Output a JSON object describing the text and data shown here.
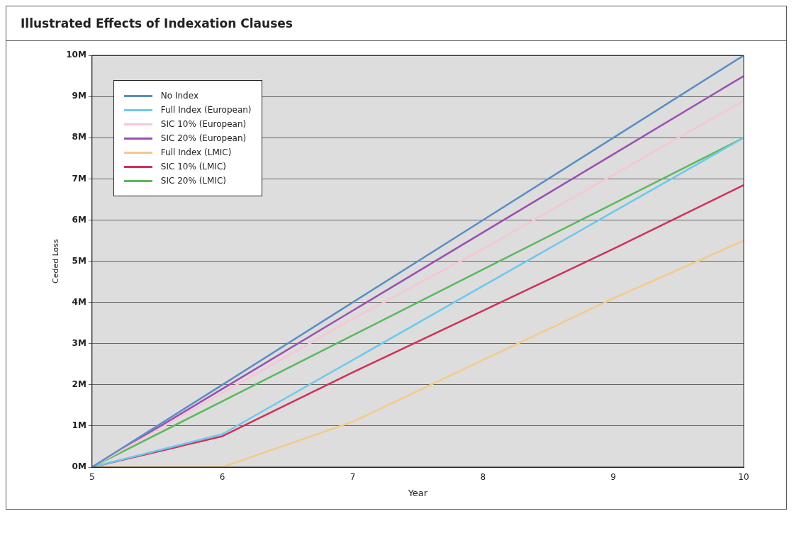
{
  "chart_data": {
    "type": "line",
    "title": "Illustrated Effects of Indexation Clauses",
    "xlabel": "Year",
    "ylabel": "Ceded Loss",
    "x": [
      5,
      6,
      7,
      8,
      9,
      10
    ],
    "series": [
      {
        "name": "No Index",
        "color": "#5b8ec4",
        "values": [
          0,
          2,
          4,
          6,
          8,
          10
        ]
      },
      {
        "name": "Full Index (European)",
        "color": "#6fc8ec",
        "values": [
          0,
          0.8,
          2.6,
          4.4,
          6.2,
          8
        ]
      },
      {
        "name": "SIC 10% (European)",
        "color": "#f7c6d4",
        "values": [
          0,
          1.8,
          3.6,
          5.3,
          7.1,
          8.9
        ]
      },
      {
        "name": "SIC 20% (European)",
        "color": "#9b4fb0",
        "values": [
          0,
          1.9,
          3.8,
          5.7,
          7.6,
          9.5
        ]
      },
      {
        "name": "Full Index (LMIC)",
        "color": "#f5c98a",
        "values": [
          0,
          0,
          1.1,
          2.6,
          4.1,
          5.5
        ]
      },
      {
        "name": "SIC 10% (LMIC)",
        "color": "#d0305a",
        "values": [
          0,
          0.75,
          2.3,
          3.8,
          5.3,
          6.85
        ]
      },
      {
        "name": "SIC 20% (LMIC)",
        "color": "#5cb85c",
        "values": [
          0,
          1.6,
          3.2,
          4.8,
          6.4,
          8
        ]
      }
    ],
    "xlim": [
      5,
      10
    ],
    "xticks": [
      5,
      6,
      7,
      8,
      9,
      10
    ],
    "ylim": [
      0,
      10
    ],
    "yticks": [
      {
        "value": 0,
        "label": "0M"
      },
      {
        "value": 1,
        "label": "1M"
      },
      {
        "value": 2,
        "label": "2M"
      },
      {
        "value": 3,
        "label": "3M"
      },
      {
        "value": 4,
        "label": "4M"
      },
      {
        "value": 5,
        "label": "5M"
      },
      {
        "value": 6,
        "label": "6M"
      },
      {
        "value": 7,
        "label": "7M"
      },
      {
        "value": 8,
        "label": "8M"
      },
      {
        "value": 9,
        "label": "9M"
      },
      {
        "value": 10,
        "label": "10M"
      }
    ],
    "grid": "y",
    "legend": "top left",
    "marker": "none",
    "line_style": "solid"
  }
}
